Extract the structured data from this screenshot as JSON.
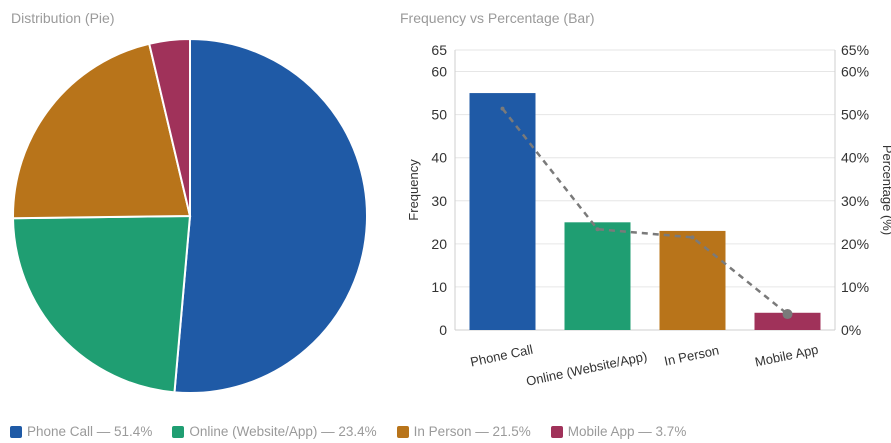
{
  "pie_title": "Distribution (Pie)",
  "bar_title": "Frequency vs Percentage (Bar)",
  "colors": {
    "phone": "#1f5aa6",
    "online": "#1f9e72",
    "in_person": "#b8741a",
    "mobile": "#a0325a",
    "trend_line": "#7a7a7a",
    "grid": "#e6e6e6",
    "axis_text": "#333333"
  },
  "legend": [
    {
      "label": "Phone Call — 51.4%",
      "color": "#1f5aa6"
    },
    {
      "label": "Online (Website/App) — 23.4%",
      "color": "#1f9e72"
    },
    {
      "label": "In Person — 21.5%",
      "color": "#b8741a"
    },
    {
      "label": "Mobile App — 3.7%",
      "color": "#a0325a"
    }
  ],
  "chart_data": [
    {
      "type": "pie",
      "title": "Distribution (Pie)",
      "categories": [
        "Phone Call",
        "Online (Website/App)",
        "In Person",
        "Mobile App"
      ],
      "values": [
        51.4,
        23.4,
        21.5,
        3.7
      ],
      "colors": [
        "#1f5aa6",
        "#1f9e72",
        "#b8741a",
        "#a0325a"
      ]
    },
    {
      "type": "bar",
      "title": "Frequency vs Percentage (Bar)",
      "categories": [
        "Phone Call",
        "Online (Website/App)",
        "In Person",
        "Mobile App"
      ],
      "series": [
        {
          "values": [
            55,
            25,
            23,
            4
          ],
          "colors": [
            "#1f5aa6",
            "#1f9e72",
            "#b8741a",
            "#a0325a"
          ]
        },
        {
          "values": [
            51.4,
            23.4,
            21.5,
            3.7
          ],
          "style": "dashed-line",
          "axis": "right"
        }
      ],
      "ylabel": "Frequency",
      "ylabel_right": "Percentage (%)",
      "yticks": [
        0,
        10,
        20,
        30,
        40,
        50,
        60,
        65
      ],
      "yticks_right": [
        "0%",
        "10%",
        "20%",
        "30%",
        "40%",
        "50%",
        "60%",
        "65%"
      ],
      "ylim": [
        0,
        65
      ],
      "ylim_right": [
        0,
        65
      ],
      "grid": true
    }
  ]
}
